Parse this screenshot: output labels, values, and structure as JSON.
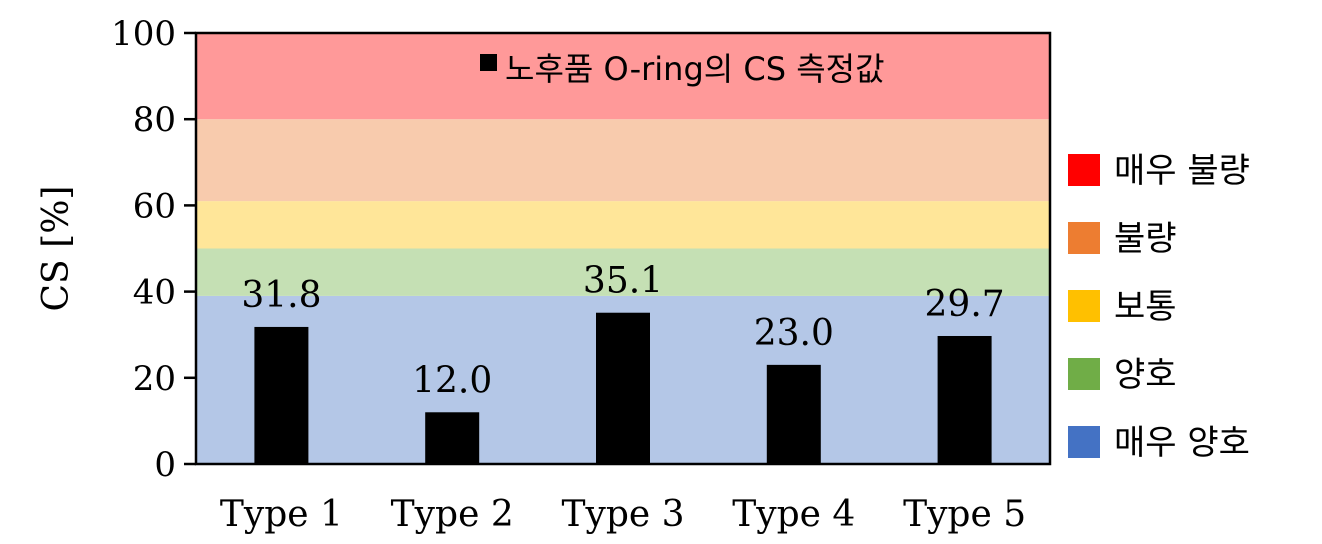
{
  "chart_data": {
    "type": "bar",
    "categories": [
      "Type 1",
      "Type 2",
      "Type 3",
      "Type 4",
      "Type 5"
    ],
    "series": [
      {
        "name": "노후품 O-ring의 CS 측정값",
        "values": [
          31.8,
          12.0,
          35.1,
          23.0,
          29.7
        ],
        "color": "#000000"
      }
    ],
    "data_labels": [
      "31.8",
      "12.0",
      "35.1",
      "23.0",
      "29.7"
    ],
    "ylabel": "CS [%]",
    "xlabel": "",
    "ylim": [
      0,
      100
    ],
    "yticks": [
      0,
      20,
      40,
      60,
      80,
      100
    ],
    "grid": false,
    "legend_position": "top-right inside",
    "bands": [
      {
        "label": "매우 양호",
        "from": 0,
        "to": 39,
        "color": "#b4c7e7",
        "legend_color": "#4472c4"
      },
      {
        "label": "양호",
        "from": 39,
        "to": 50,
        "color": "#c5e0b4",
        "legend_color": "#70ad47"
      },
      {
        "label": "보통",
        "from": 50,
        "to": 61,
        "color": "#ffe699",
        "legend_color": "#ffc000"
      },
      {
        "label": "불량",
        "from": 61,
        "to": 80,
        "color": "#f8cbad",
        "legend_color": "#ed7d31"
      },
      {
        "label": "매우 불량",
        "from": 80,
        "to": 100,
        "color": "#ff9999",
        "legend_color": "#ff0000"
      }
    ],
    "band_legend_order": [
      "매우 불량",
      "불량",
      "보통",
      "양호",
      "매우 양호"
    ]
  }
}
